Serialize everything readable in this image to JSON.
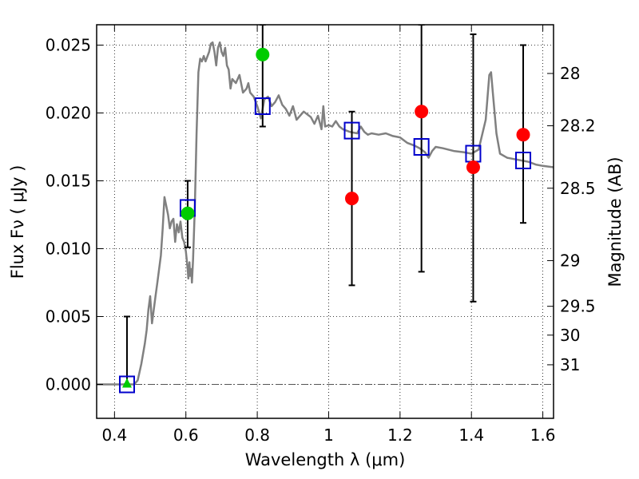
{
  "chart_data": {
    "type": "scatter",
    "title": "",
    "xlabel": "Wavelength  λ (μm)",
    "ylabel": "Flux  Fν  ( μJy )",
    "y2label": "Magnitude (AB)",
    "xlim": [
      0.35,
      1.63
    ],
    "ylim": [
      -0.0025,
      0.0265
    ],
    "grid": true,
    "x_ticks": [
      {
        "value": 0.4,
        "label": "0.4"
      },
      {
        "value": 0.6,
        "label": "0.6"
      },
      {
        "value": 0.8,
        "label": "0.8"
      },
      {
        "value": 1.0,
        "label": "1"
      },
      {
        "value": 1.2,
        "label": "1.2"
      },
      {
        "value": 1.4,
        "label": "1.4"
      },
      {
        "value": 1.6,
        "label": "1.6"
      }
    ],
    "y_ticks": [
      {
        "value": 0.0,
        "label": "0.000"
      },
      {
        "value": 0.005,
        "label": "0.005"
      },
      {
        "value": 0.01,
        "label": "0.010"
      },
      {
        "value": 0.015,
        "label": "0.015"
      },
      {
        "value": 0.02,
        "label": "0.020"
      },
      {
        "value": 0.025,
        "label": "0.025"
      }
    ],
    "mag_ticks": [
      {
        "mag": 28,
        "label": "28"
      },
      {
        "mag": 28.2,
        "label": "28.2"
      },
      {
        "mag": 28.5,
        "label": "28.5"
      },
      {
        "mag": 29,
        "label": "29"
      },
      {
        "mag": 29.5,
        "label": "29.5"
      },
      {
        "mag": 30,
        "label": "30"
      },
      {
        "mag": 31,
        "label": "31"
      }
    ],
    "model_spectrum": {
      "color": "#808080",
      "points": [
        [
          0.35,
          0.0
        ],
        [
          0.44,
          0.0
        ],
        [
          0.455,
          0.0
        ],
        [
          0.465,
          0.0003
        ],
        [
          0.475,
          0.0015
        ],
        [
          0.485,
          0.003
        ],
        [
          0.49,
          0.004
        ],
        [
          0.495,
          0.0055
        ],
        [
          0.5,
          0.0065
        ],
        [
          0.505,
          0.0045
        ],
        [
          0.515,
          0.0065
        ],
        [
          0.52,
          0.0075
        ],
        [
          0.525,
          0.0085
        ],
        [
          0.53,
          0.0095
        ],
        [
          0.535,
          0.0115
        ],
        [
          0.54,
          0.0138
        ],
        [
          0.55,
          0.0125
        ],
        [
          0.555,
          0.0115
        ],
        [
          0.56,
          0.012
        ],
        [
          0.565,
          0.0122
        ],
        [
          0.57,
          0.0105
        ],
        [
          0.575,
          0.0118
        ],
        [
          0.58,
          0.0112
        ],
        [
          0.585,
          0.012
        ],
        [
          0.59,
          0.0108
        ],
        [
          0.595,
          0.0105
        ],
        [
          0.6,
          0.0098
        ],
        [
          0.605,
          0.0085
        ],
        [
          0.607,
          0.0078
        ],
        [
          0.61,
          0.009
        ],
        [
          0.612,
          0.008
        ],
        [
          0.615,
          0.0085
        ],
        [
          0.617,
          0.0075
        ],
        [
          0.62,
          0.0092
        ],
        [
          0.625,
          0.013
        ],
        [
          0.63,
          0.0185
        ],
        [
          0.635,
          0.023
        ],
        [
          0.64,
          0.024
        ],
        [
          0.645,
          0.0238
        ],
        [
          0.65,
          0.0242
        ],
        [
          0.655,
          0.0238
        ],
        [
          0.665,
          0.0245
        ],
        [
          0.67,
          0.0251
        ],
        [
          0.675,
          0.0252
        ],
        [
          0.68,
          0.0245
        ],
        [
          0.685,
          0.0235
        ],
        [
          0.69,
          0.0248
        ],
        [
          0.695,
          0.0252
        ],
        [
          0.7,
          0.0245
        ],
        [
          0.705,
          0.0242
        ],
        [
          0.71,
          0.0248
        ],
        [
          0.715,
          0.0235
        ],
        [
          0.72,
          0.0232
        ],
        [
          0.725,
          0.0218
        ],
        [
          0.73,
          0.0225
        ],
        [
          0.74,
          0.0222
        ],
        [
          0.75,
          0.0228
        ],
        [
          0.76,
          0.0215
        ],
        [
          0.77,
          0.0218
        ],
        [
          0.775,
          0.0222
        ],
        [
          0.78,
          0.0215
        ],
        [
          0.79,
          0.0212
        ],
        [
          0.8,
          0.0205
        ],
        [
          0.81,
          0.0196
        ],
        [
          0.82,
          0.021
        ],
        [
          0.83,
          0.0212
        ],
        [
          0.84,
          0.0205
        ],
        [
          0.85,
          0.0208
        ],
        [
          0.86,
          0.0213
        ],
        [
          0.87,
          0.0206
        ],
        [
          0.88,
          0.0203
        ],
        [
          0.89,
          0.0198
        ],
        [
          0.9,
          0.0205
        ],
        [
          0.91,
          0.0195
        ],
        [
          0.93,
          0.0201
        ],
        [
          0.95,
          0.0197
        ],
        [
          0.96,
          0.0192
        ],
        [
          0.97,
          0.0198
        ],
        [
          0.98,
          0.0188
        ],
        [
          0.985,
          0.0205
        ],
        [
          0.99,
          0.019
        ],
        [
          1.0,
          0.0191
        ],
        [
          1.01,
          0.019
        ],
        [
          1.02,
          0.0194
        ],
        [
          1.03,
          0.019
        ],
        [
          1.04,
          0.0188
        ],
        [
          1.06,
          0.0186
        ],
        [
          1.08,
          0.0185
        ],
        [
          1.09,
          0.019
        ],
        [
          1.1,
          0.0186
        ],
        [
          1.11,
          0.0184
        ],
        [
          1.12,
          0.0185
        ],
        [
          1.14,
          0.0184
        ],
        [
          1.16,
          0.0185
        ],
        [
          1.18,
          0.0183
        ],
        [
          1.2,
          0.0182
        ],
        [
          1.22,
          0.0178
        ],
        [
          1.24,
          0.0176
        ],
        [
          1.255,
          0.0174
        ],
        [
          1.27,
          0.0171
        ],
        [
          1.28,
          0.0167
        ],
        [
          1.29,
          0.0172
        ],
        [
          1.3,
          0.0175
        ],
        [
          1.32,
          0.0174
        ],
        [
          1.35,
          0.0172
        ],
        [
          1.38,
          0.0171
        ],
        [
          1.4,
          0.017
        ],
        [
          1.42,
          0.0173
        ],
        [
          1.44,
          0.0195
        ],
        [
          1.45,
          0.0228
        ],
        [
          1.455,
          0.023
        ],
        [
          1.46,
          0.0215
        ],
        [
          1.47,
          0.0185
        ],
        [
          1.48,
          0.017
        ],
        [
          1.5,
          0.0167
        ],
        [
          1.52,
          0.0166
        ],
        [
          1.54,
          0.0165
        ],
        [
          1.56,
          0.0164
        ],
        [
          1.58,
          0.0162
        ],
        [
          1.6,
          0.0161
        ],
        [
          1.63,
          0.016
        ]
      ]
    },
    "series": [
      {
        "marker": "square",
        "color": "#0000cc",
        "points": [
          {
            "x": 0.435,
            "y": 0.0
          },
          {
            "x": 0.605,
            "y": 0.013
          },
          {
            "x": 0.815,
            "y": 0.0205
          },
          {
            "x": 1.065,
            "y": 0.0187
          },
          {
            "x": 1.26,
            "y": 0.0175
          },
          {
            "x": 1.405,
            "y": 0.017
          },
          {
            "x": 1.545,
            "y": 0.0165
          }
        ]
      },
      {
        "marker": "circle",
        "color": "#00cc00",
        "points": [
          {
            "x": 0.605,
            "y": 0.0126
          },
          {
            "x": 0.815,
            "y": 0.0243
          }
        ]
      },
      {
        "marker": "triangle",
        "color": "#00cc00",
        "points": [
          {
            "x": 0.435,
            "y": 0.0
          }
        ]
      },
      {
        "marker": "circle",
        "color": "#ff0000",
        "points": [
          {
            "x": 1.065,
            "y": 0.0137
          },
          {
            "x": 1.26,
            "y": 0.0201
          },
          {
            "x": 1.405,
            "y": 0.016
          },
          {
            "x": 1.545,
            "y": 0.0184
          }
        ]
      }
    ],
    "error_bars": [
      {
        "x": 0.435,
        "low": 0.0,
        "high": 0.005
      },
      {
        "x": 0.605,
        "low": 0.0101,
        "high": 0.015
      },
      {
        "x": 0.815,
        "low": 0.019,
        "high": 0.0265
      },
      {
        "x": 1.065,
        "low": 0.0073,
        "high": 0.0201
      },
      {
        "x": 1.26,
        "low": 0.0083,
        "high": 0.0265
      },
      {
        "x": 1.405,
        "low": 0.0061,
        "high": 0.0258
      },
      {
        "x": 1.545,
        "low": 0.0119,
        "high": 0.025
      }
    ]
  }
}
